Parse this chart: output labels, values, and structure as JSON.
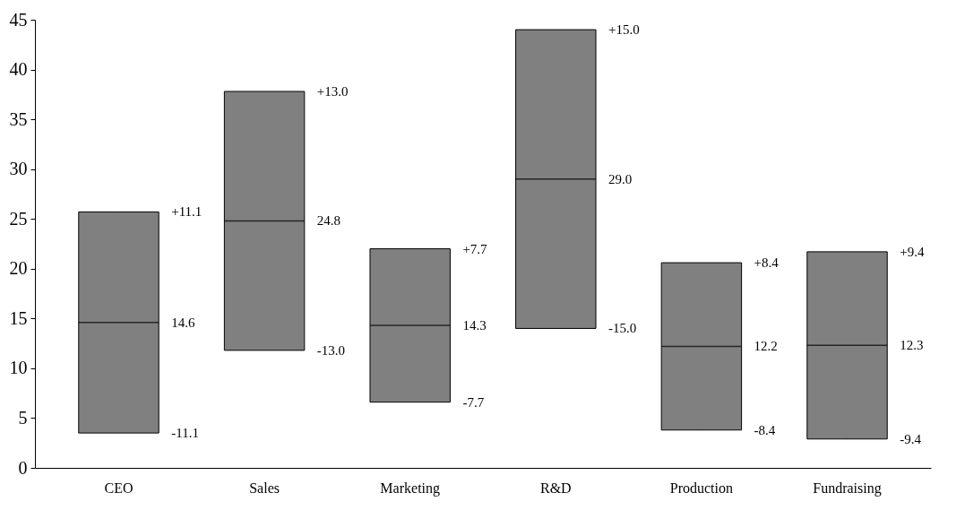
{
  "chart_data": {
    "type": "box",
    "categories": [
      "CEO",
      "Sales",
      "Marketing",
      "R&D",
      "Production",
      "Fundraising"
    ],
    "boxes": [
      {
        "low": 3.5,
        "q1": 3.5,
        "median": 14.6,
        "q3": 25.7,
        "high": 25.7
      },
      {
        "low": 11.8,
        "q1": 11.8,
        "median": 24.8,
        "q3": 37.8,
        "high": 37.8
      },
      {
        "low": 6.6,
        "q1": 6.6,
        "median": 14.3,
        "q3": 22.0,
        "high": 22.0
      },
      {
        "low": 14.0,
        "q1": 14.0,
        "median": 29.0,
        "q3": 44.0,
        "high": 44.0
      },
      {
        "low": 3.8,
        "q1": 3.8,
        "median": 12.2,
        "q3": 20.6,
        "high": 20.6
      },
      {
        "low": 2.9,
        "q1": 2.9,
        "median": 12.3,
        "q3": 21.7,
        "high": 21.7
      }
    ],
    "color": "#808080",
    "ylim": [
      0,
      45
    ],
    "yticks": [
      0,
      5,
      10,
      15,
      20,
      25,
      30,
      35,
      40,
      45
    ],
    "grid": false,
    "annotations": [
      "+11.1",
      "14.6",
      "-11.1",
      "+13.0",
      "24.8",
      "-13.0",
      "+7.7",
      "14.3",
      "-7.7",
      "+15.0",
      "29.0",
      "-15.0",
      "+8.4",
      "12.2",
      "-8.4",
      "+9.4",
      "12.3",
      "-9.4"
    ]
  }
}
